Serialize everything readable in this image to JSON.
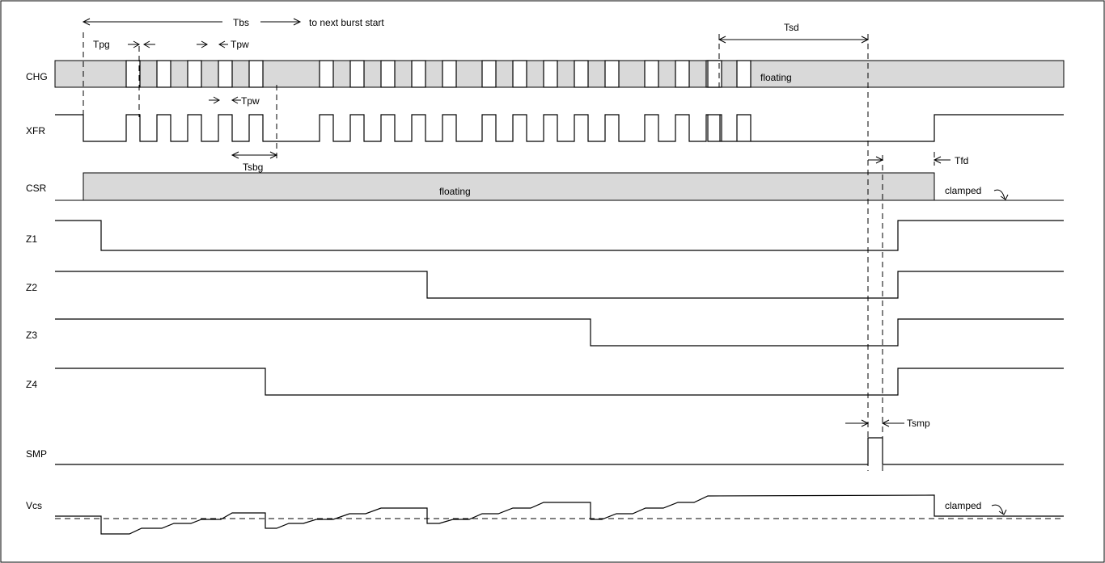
{
  "signals": {
    "chg": "CHG",
    "xfr": "XFR",
    "csr": "CSR",
    "z1": "Z1",
    "z2": "Z2",
    "z3": "Z3",
    "z4": "Z4",
    "smp": "SMP",
    "vcs": "Vcs"
  },
  "labels": {
    "tbs": "Tbs",
    "next_burst": "to next burst start",
    "tpg": "Tpg",
    "tpw_top": "Tpw",
    "tpw_xfr": "Tpw",
    "tsbg": "Tsbg",
    "tsd": "Tsd",
    "tfd": "Tfd",
    "tsmp": "Tsmp",
    "chg_floating": "floating",
    "csr_floating": "floating",
    "csr_clamped": "clamped",
    "vcs_clamped": "clamped"
  }
}
